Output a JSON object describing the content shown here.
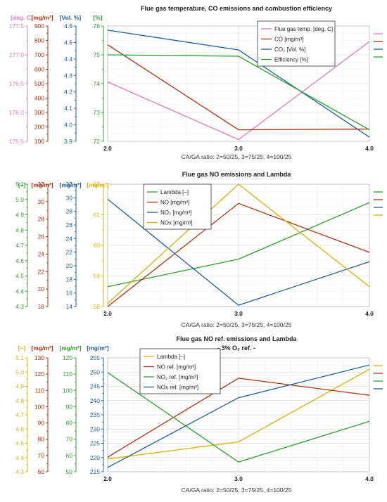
{
  "colors": {
    "pink": "#e377c2",
    "red": "#b03010",
    "blue": "#1f5f9f",
    "green": "#2ca02c",
    "gold": "#e0b000",
    "grid": "#dcdcdc"
  },
  "chart_data": [
    {
      "type": "line",
      "title": "Flue gas temperature, CO emissions and combustion efficiency",
      "subtitle": "",
      "xlabel": "CA/GA ratio: 2=50/25, 3=75/25, 4=100/25",
      "x": [
        2.0,
        3.0,
        4.0
      ],
      "x_ticks": [
        "2.0",
        "3.0",
        "4.0"
      ],
      "legend_position": "top-right",
      "grid": true,
      "axes": [
        {
          "unit": "[deg. C]",
          "color": "pink",
          "ylim": [
            175.5,
            177.5
          ],
          "ticks": [
            175.5,
            176.0,
            176.5,
            177.0,
            177.5
          ],
          "tick_labels": [
            "175.5",
            "176.0",
            "176.5",
            "177.0",
            "177.5"
          ]
        },
        {
          "unit": "[mg/m³]",
          "color": "red",
          "ylim": [
            100,
            900
          ],
          "ticks": [
            100,
            200,
            300,
            400,
            500,
            600,
            700,
            800,
            900
          ],
          "tick_labels": [
            "100",
            "200",
            "300",
            "400",
            "500",
            "600",
            "700",
            "800",
            "900"
          ]
        },
        {
          "unit": "[Vol. %]",
          "color": "blue",
          "ylim": [
            3.9,
            4.6
          ],
          "ticks": [
            3.9,
            4.0,
            4.1,
            4.2,
            4.3,
            4.4,
            4.5,
            4.6
          ],
          "tick_labels": [
            "3.9",
            "4.0",
            "4.1",
            "4.2",
            "4.3",
            "4.4",
            "4.5",
            "4.6"
          ]
        },
        {
          "unit": "[%]",
          "color": "green",
          "ylim": [
            72,
            76
          ],
          "ticks": [
            72,
            73,
            74,
            75,
            76
          ],
          "tick_labels": [
            "72",
            "73",
            "74",
            "75",
            "76"
          ]
        }
      ],
      "series": [
        {
          "name": "Flue gas temp. [deg. C]",
          "color": "pink",
          "axis": 0,
          "values": [
            176.53,
            175.53,
            177.23
          ]
        },
        {
          "name": "CO [mg/m³]",
          "color": "red",
          "axis": 1,
          "values": [
            770,
            180,
            185
          ]
        },
        {
          "name": "CO₂ [Vol. %]",
          "color": "blue",
          "axis": 2,
          "values": [
            4.575,
            4.455,
            3.925
          ]
        },
        {
          "name": "Efficiency [%]",
          "color": "green",
          "axis": 3,
          "values": [
            75.0,
            74.95,
            72.4
          ]
        }
      ]
    },
    {
      "type": "line",
      "title": "Flue gas NO emissions and Lambda",
      "subtitle": "",
      "xlabel": "CA/GA ratio: 2=50/25, 3=75/25, 4=100/25",
      "x": [
        2.0,
        3.0,
        4.0
      ],
      "x_ticks": [
        "2.0",
        "3.0",
        "4.0"
      ],
      "legend_position": "top-left",
      "grid": true,
      "axes": [
        {
          "unit": "[–]",
          "color": "green",
          "ylim": [
            4.3,
            5.1
          ],
          "ticks": [
            4.3,
            4.4,
            4.5,
            4.6,
            4.7,
            4.8,
            4.9,
            5.0,
            5.1
          ],
          "tick_labels": [
            "4.3",
            "4.4",
            "4.5",
            "4.6",
            "4.7",
            "4.8",
            "4.9",
            "5.0",
            "5.1"
          ]
        },
        {
          "unit": "[mg/m³]",
          "color": "red",
          "ylim": [
            18,
            32
          ],
          "ticks": [
            18,
            20,
            22,
            24,
            26,
            28,
            30,
            32
          ],
          "tick_labels": [
            "18",
            "20",
            "22",
            "24",
            "26",
            "28",
            "30",
            "32"
          ]
        },
        {
          "unit": "[mg/m³]",
          "color": "blue",
          "ylim": [
            14,
            32
          ],
          "ticks": [
            14,
            16,
            18,
            20,
            22,
            24,
            26,
            28,
            30,
            32
          ],
          "tick_labels": [
            "14",
            "16",
            "18",
            "20",
            "22",
            "24",
            "26",
            "28",
            "30",
            "32"
          ]
        },
        {
          "unit": "[mg/m³]",
          "color": "gold",
          "ylim": [
            58,
            62
          ],
          "ticks": [
            58,
            59,
            60,
            61,
            62
          ],
          "tick_labels": [
            "58",
            "59",
            "60",
            "61",
            "62"
          ]
        }
      ],
      "series": [
        {
          "name": "Lambda [–]",
          "color": "green",
          "axis": 0,
          "values": [
            4.43,
            4.61,
            4.98
          ]
        },
        {
          "name": "NO [mg/m³]",
          "color": "red",
          "axis": 1,
          "values": [
            18.0,
            29.8,
            24.2
          ]
        },
        {
          "name": "NO₂ [mg/m³]",
          "color": "blue",
          "axis": 2,
          "values": [
            29.8,
            14.2,
            20.6
          ]
        },
        {
          "name": "NOx [mg/m³]",
          "color": "gold",
          "axis": 3,
          "values": [
            58.1,
            62.0,
            58.65
          ]
        }
      ]
    },
    {
      "type": "line",
      "title": "Flue gas NO ref. emissions and Lambda",
      "subtitle": "- 3% O₂ ref. -",
      "xlabel": "CA/GA ratio: 2=50/25, 3=75/25, 4=100/25",
      "x": [
        2.0,
        3.0,
        4.0
      ],
      "x_ticks": [
        "2.0",
        "3.0",
        "4.0"
      ],
      "legend_position": "top-left",
      "grid": true,
      "axes": [
        {
          "unit": "[–]",
          "color": "gold",
          "ylim": [
            4.3,
            5.1
          ],
          "ticks": [
            4.3,
            4.4,
            4.5,
            4.6,
            4.7,
            4.8,
            4.9,
            5.0,
            5.1
          ],
          "tick_labels": [
            "4.3",
            "4.4",
            "4.5",
            "4.6",
            "4.7",
            "4.8",
            "4.9",
            "5.0",
            "5.1"
          ]
        },
        {
          "unit": "[mg/m³]",
          "color": "red",
          "ylim": [
            60,
            130
          ],
          "ticks": [
            60,
            70,
            80,
            90,
            100,
            110,
            120,
            130
          ],
          "tick_labels": [
            "60",
            "70",
            "80",
            "90",
            "100",
            "110",
            "120",
            "130"
          ]
        },
        {
          "unit": "[mg/m³]",
          "color": "green",
          "ylim": [
            50,
            120
          ],
          "ticks": [
            50,
            60,
            70,
            80,
            90,
            100,
            110,
            120
          ],
          "tick_labels": [
            "50",
            "60",
            "70",
            "80",
            "90",
            "100",
            "110",
            "120"
          ]
        },
        {
          "unit": "[mg/m³]",
          "color": "blue",
          "ylim": [
            215,
            255
          ],
          "ticks": [
            215,
            220,
            225,
            230,
            235,
            240,
            245,
            250,
            255
          ],
          "tick_labels": [
            "215",
            "220",
            "225",
            "230",
            "235",
            "240",
            "245",
            "250",
            "255"
          ]
        }
      ],
      "series": [
        {
          "name": "Lambda [–]",
          "color": "gold",
          "axis": 0,
          "values": [
            4.39,
            4.51,
            5.02
          ]
        },
        {
          "name": "NO ref. [mg/m³]",
          "color": "red",
          "axis": 1,
          "values": [
            69,
            117.5,
            107
          ]
        },
        {
          "name": "NO₂ ref. [mg/m³]",
          "color": "green",
          "axis": 2,
          "values": [
            111,
            56,
            81
          ]
        },
        {
          "name": "NOx ref. [mg/m³]",
          "color": "blue",
          "axis": 3,
          "values": [
            216.5,
            241.0,
            252.5
          ]
        }
      ]
    }
  ]
}
